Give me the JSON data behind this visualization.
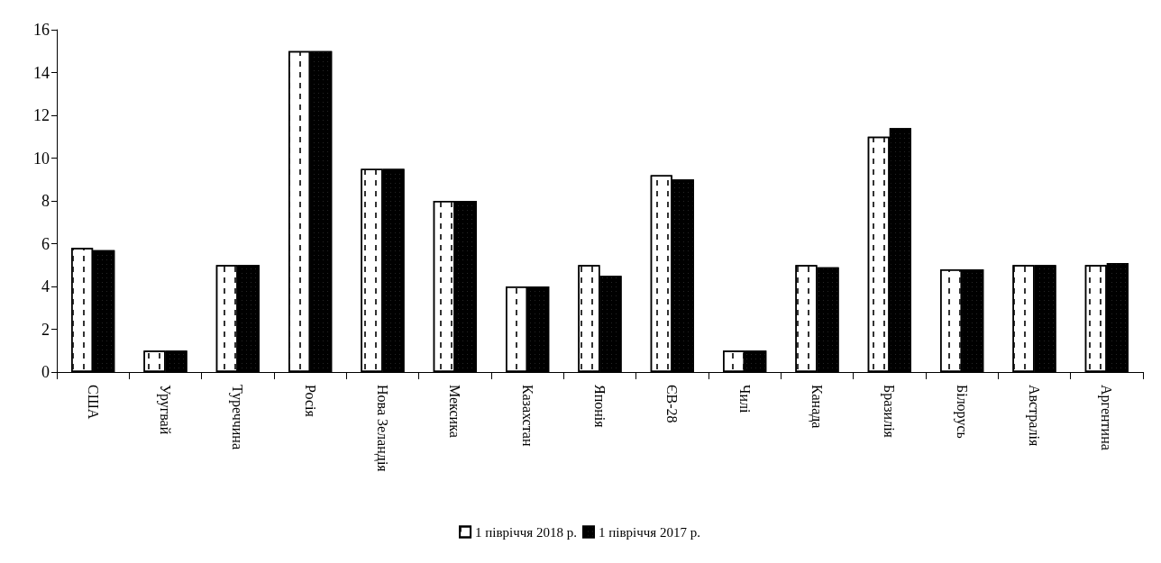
{
  "chart_data": {
    "type": "bar",
    "categories": [
      "США",
      "Уругвай",
      "Туреччина",
      "Росія",
      "Нова Зеландія",
      "Мексика",
      "Казахстан",
      "Японія",
      "ЄВ-28",
      "Чилі",
      "Канада",
      "Бразилія",
      "Білорусь",
      "Австралія",
      "Аргентина"
    ],
    "series": [
      {
        "name": "1 півріччя 2018 р.",
        "color": "#ffffff",
        "values": [
          5.8,
          1.0,
          5.0,
          15.0,
          9.5,
          8.0,
          4.0,
          5.0,
          9.2,
          1.0,
          5.0,
          11.0,
          4.8,
          5.0,
          5.0
        ]
      },
      {
        "name": "1 півріччя 2017 р.",
        "color": "#000000",
        "values": [
          5.7,
          1.0,
          5.0,
          15.0,
          9.5,
          8.0,
          4.0,
          4.5,
          9.0,
          1.0,
          4.9,
          11.4,
          4.8,
          5.0,
          5.1
        ]
      }
    ],
    "ylim": [
      0,
      16
    ],
    "yticks": [
      0,
      2,
      4,
      6,
      8,
      10,
      12,
      14,
      16
    ],
    "grid": false,
    "legend": "bottom"
  }
}
